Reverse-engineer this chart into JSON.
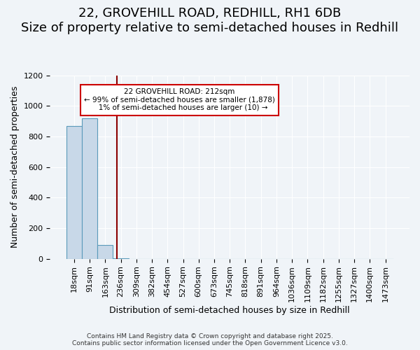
{
  "title_line1": "22, GROVEHILL ROAD, REDHILL, RH1 6DB",
  "title_line2": "Size of property relative to semi-detached houses in Redhill",
  "xlabel": "Distribution of semi-detached houses by size in Redhill",
  "ylabel": "Number of semi-detached properties",
  "bar_values": [
    870,
    920,
    90,
    5,
    0,
    0,
    0,
    0,
    0,
    0,
    0,
    0,
    0,
    0,
    0,
    0,
    0,
    0,
    0,
    0,
    0
  ],
  "bar_labels": [
    "18sqm",
    "91sqm",
    "163sqm",
    "236sqm",
    "309sqm",
    "382sqm",
    "454sqm",
    "527sqm",
    "600sqm",
    "673sqm",
    "745sqm",
    "818sqm",
    "891sqm",
    "964sqm",
    "1036sqm",
    "1109sqm",
    "1182sqm",
    "1255sqm",
    "1327sqm",
    "1400sqm",
    "1473sqm"
  ],
  "bar_color": "#c8d8e8",
  "bar_edgecolor": "#5a9aba",
  "vline_x": 2.75,
  "vline_color": "#8b0000",
  "annotation_text": "22 GROVEHILL ROAD: 212sqm\n← 99% of semi-detached houses are smaller (1,878)\n   1% of semi-detached houses are larger (10) →",
  "annotation_box_color": "#ffffff",
  "annotation_box_edgecolor": "#cc0000",
  "ylim": [
    0,
    1200
  ],
  "yticks": [
    0,
    200,
    400,
    600,
    800,
    1000,
    1200
  ],
  "background_color": "#f0f4f8",
  "grid_color": "#ffffff",
  "footer_line1": "Contains HM Land Registry data © Crown copyright and database right 2025.",
  "footer_line2": "Contains public sector information licensed under the Open Government Licence v3.0.",
  "title_fontsize": 13,
  "subtitle_fontsize": 11,
  "axis_label_fontsize": 9,
  "tick_fontsize": 8
}
